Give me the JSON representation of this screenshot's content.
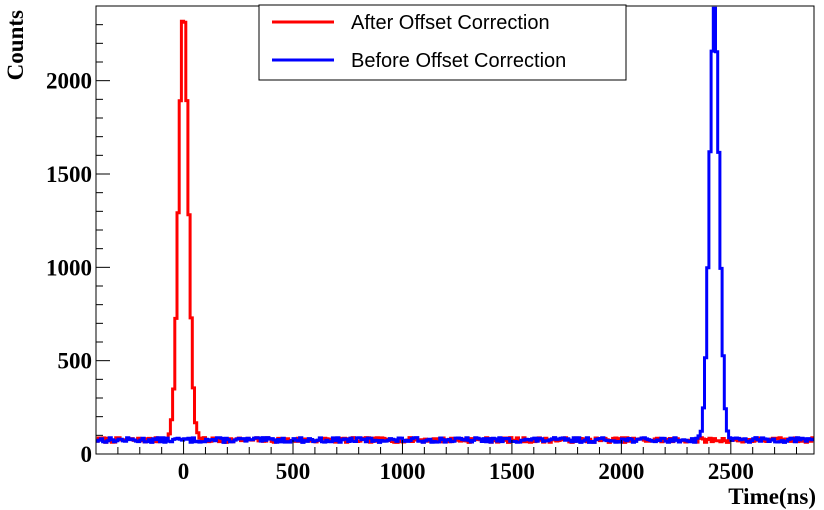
{
  "chart_data": {
    "type": "line",
    "title": "",
    "xlabel": "Time(ns)",
    "ylabel": "Counts",
    "xlim": [
      -400,
      2880
    ],
    "ylim": [
      0,
      2400
    ],
    "xticks": [
      0,
      500,
      1000,
      1500,
      2000,
      2500
    ],
    "xtick_labels": [
      "0",
      "500",
      "1000",
      "1500",
      "2000",
      "2500"
    ],
    "yticks": [
      0,
      500,
      1000,
      1500,
      2000
    ],
    "ytick_labels": [
      "0",
      "500",
      "1000",
      "1500",
      "2000"
    ],
    "grid": false,
    "legend_position": "top-center",
    "baseline_counts": 75,
    "series": [
      {
        "name": "After Offset Correction",
        "color": "#ff0000",
        "peak_center": 0,
        "peak_height": 2300,
        "peak_sigma": 22,
        "noise_seed": 7
      },
      {
        "name": "Before Offset Correction",
        "color": "#0000ff",
        "peak_center": 2425,
        "peak_height": 2320,
        "peak_sigma": 22,
        "noise_seed": 13
      }
    ]
  }
}
